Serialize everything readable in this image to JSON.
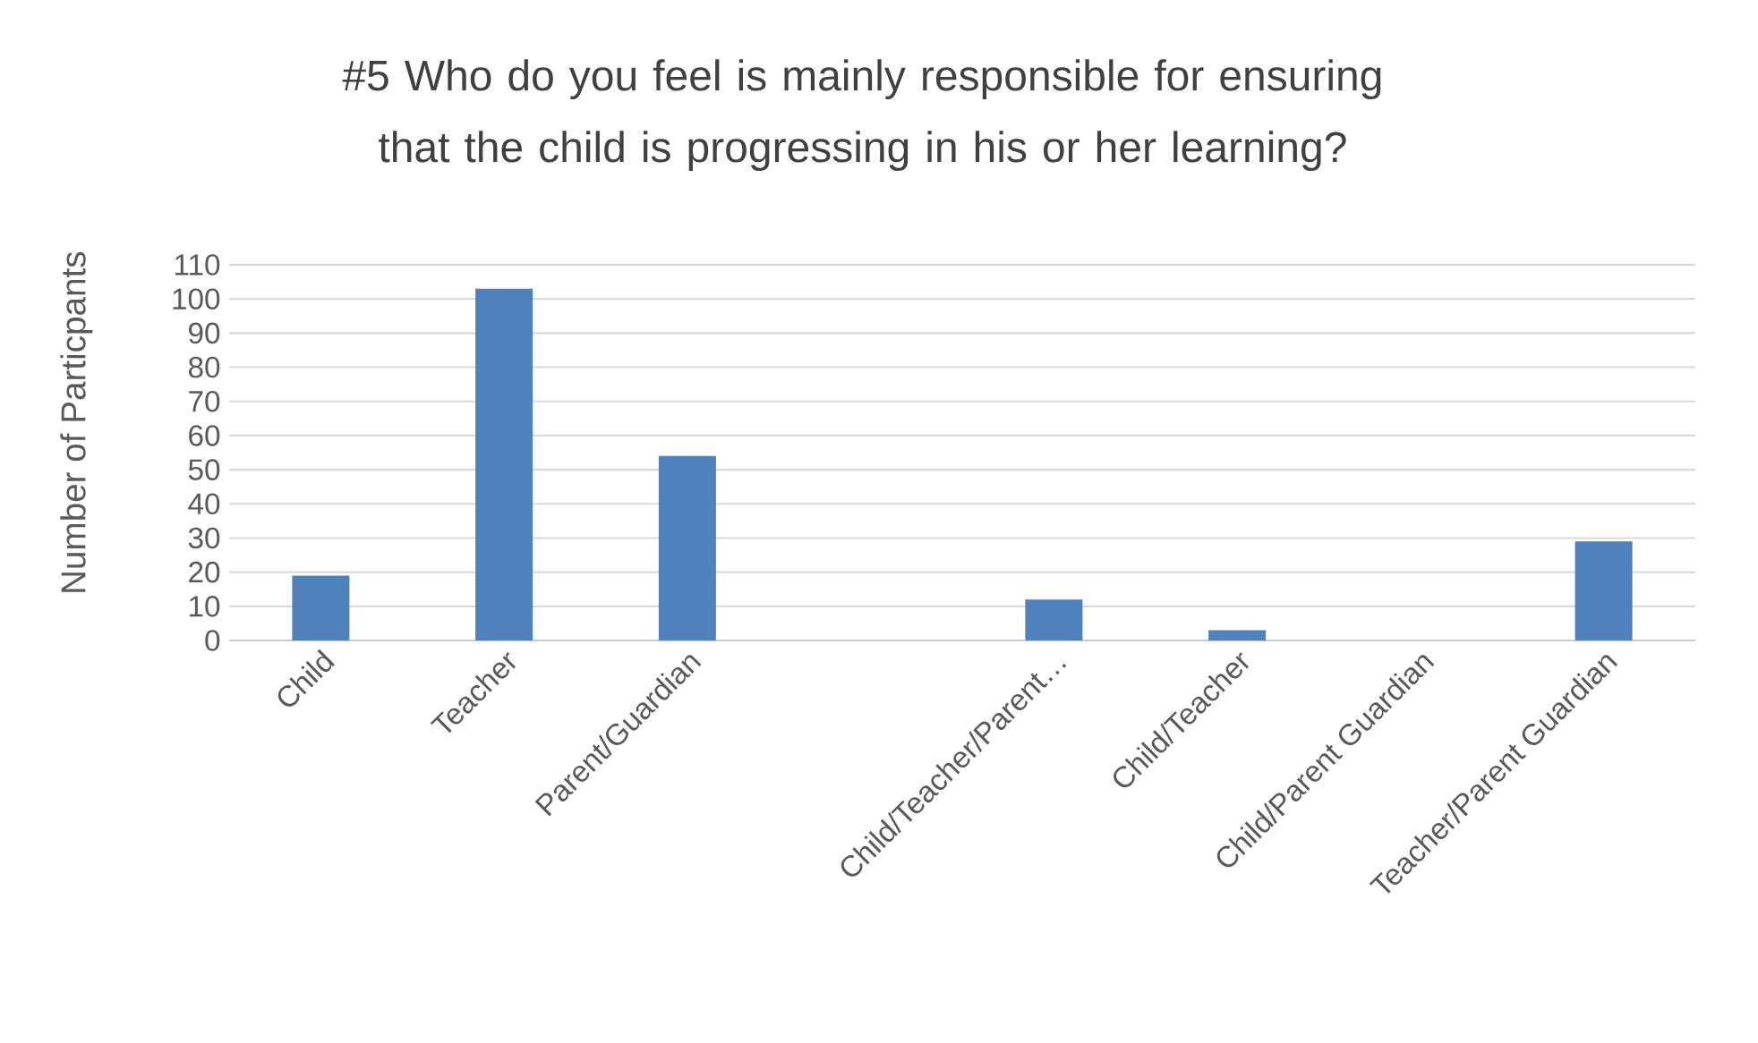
{
  "chart_data": {
    "type": "bar",
    "title": "#5 Who do you feel is mainly responsible for ensuring that the child is progressing in his or her learning?",
    "ylabel": "Number of Particpants",
    "categories": [
      "Child",
      "Teacher",
      "Parent/Guardian",
      null,
      "Child/Teacher/Parent…",
      "Child/Teacher",
      "Child/Parent Guardian",
      "Teacher/Parent Guardian"
    ],
    "values": [
      19,
      103,
      54,
      null,
      12,
      3,
      0,
      29
    ],
    "color": "#4f81bd",
    "ylim": [
      0,
      110
    ],
    "yticks": [
      0,
      10,
      20,
      30,
      40,
      50,
      60,
      70,
      80,
      90,
      100,
      110
    ],
    "grid": "y"
  }
}
